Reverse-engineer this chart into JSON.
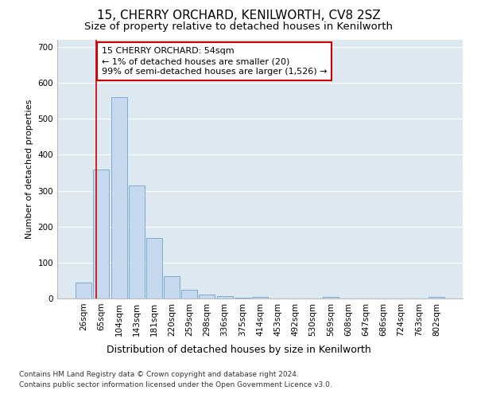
{
  "title": "15, CHERRY ORCHARD, KENILWORTH, CV8 2SZ",
  "subtitle": "Size of property relative to detached houses in Kenilworth",
  "xlabel": "Distribution of detached houses by size in Kenilworth",
  "ylabel": "Number of detached properties",
  "categories": [
    "26sqm",
    "65sqm",
    "104sqm",
    "143sqm",
    "181sqm",
    "220sqm",
    "259sqm",
    "298sqm",
    "336sqm",
    "375sqm",
    "414sqm",
    "453sqm",
    "492sqm",
    "530sqm",
    "569sqm",
    "608sqm",
    "647sqm",
    "686sqm",
    "724sqm",
    "763sqm",
    "802sqm"
  ],
  "values": [
    45,
    360,
    560,
    315,
    168,
    62,
    25,
    12,
    7,
    3,
    5,
    0,
    0,
    0,
    5,
    0,
    0,
    0,
    0,
    0,
    4
  ],
  "bar_color": "#c5d8ee",
  "bar_edgecolor": "#7aadd4",
  "background_color": "#ffffff",
  "plot_bg_color": "#dde8f0",
  "grid_color": "#ffffff",
  "annotation_text_line1": "15 CHERRY ORCHARD: 54sqm",
  "annotation_text_line2": "← 1% of detached houses are smaller (20)",
  "annotation_text_line3": "99% of semi-detached houses are larger (1,526) →",
  "annotation_box_color": "#cc0000",
  "annotation_fill": "#ffffff",
  "footnote1": "Contains HM Land Registry data © Crown copyright and database right 2024.",
  "footnote2": "Contains public sector information licensed under the Open Government Licence v3.0.",
  "ylim": [
    0,
    720
  ],
  "yticks": [
    0,
    100,
    200,
    300,
    400,
    500,
    600,
    700
  ],
  "title_fontsize": 11,
  "subtitle_fontsize": 9.5,
  "xlabel_fontsize": 9,
  "ylabel_fontsize": 8,
  "tick_fontsize": 7.5,
  "annotation_fontsize": 8,
  "footnote_fontsize": 6.5
}
